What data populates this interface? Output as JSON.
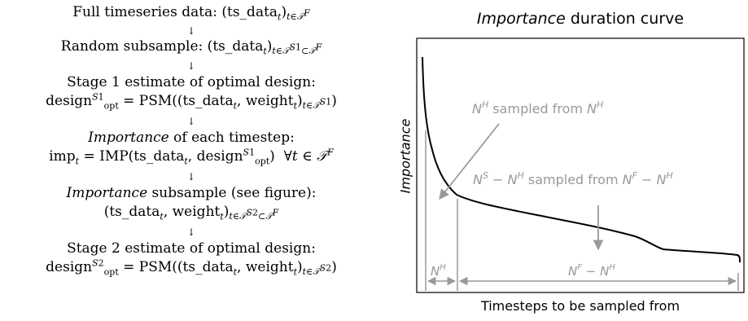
{
  "flow": {
    "step1": {
      "text": "Full timeseries data:"
    },
    "step2": {
      "text": "Random subsample:"
    },
    "step3": {
      "line1": "Stage 1 estimate of optimal design:"
    },
    "step4": {
      "line1_italic": "Importance",
      "line1_rest": " of each timestep:"
    },
    "step5": {
      "line1_italic": "Importance",
      "line1_rest": " subsample (see figure):"
    },
    "step6": {
      "line1": "Stage 2 estimate of optimal design:"
    },
    "arrow": "↓"
  },
  "figure": {
    "title_italic": "Importance",
    "title_rest": " duration curve",
    "xlabel": "Timesteps to be sampled from",
    "ylabel": "Importance",
    "annot_top": "sampled from",
    "annot_mid": "sampled from",
    "colors": {
      "curve": "#000000",
      "annotation": "#999999"
    }
  }
}
